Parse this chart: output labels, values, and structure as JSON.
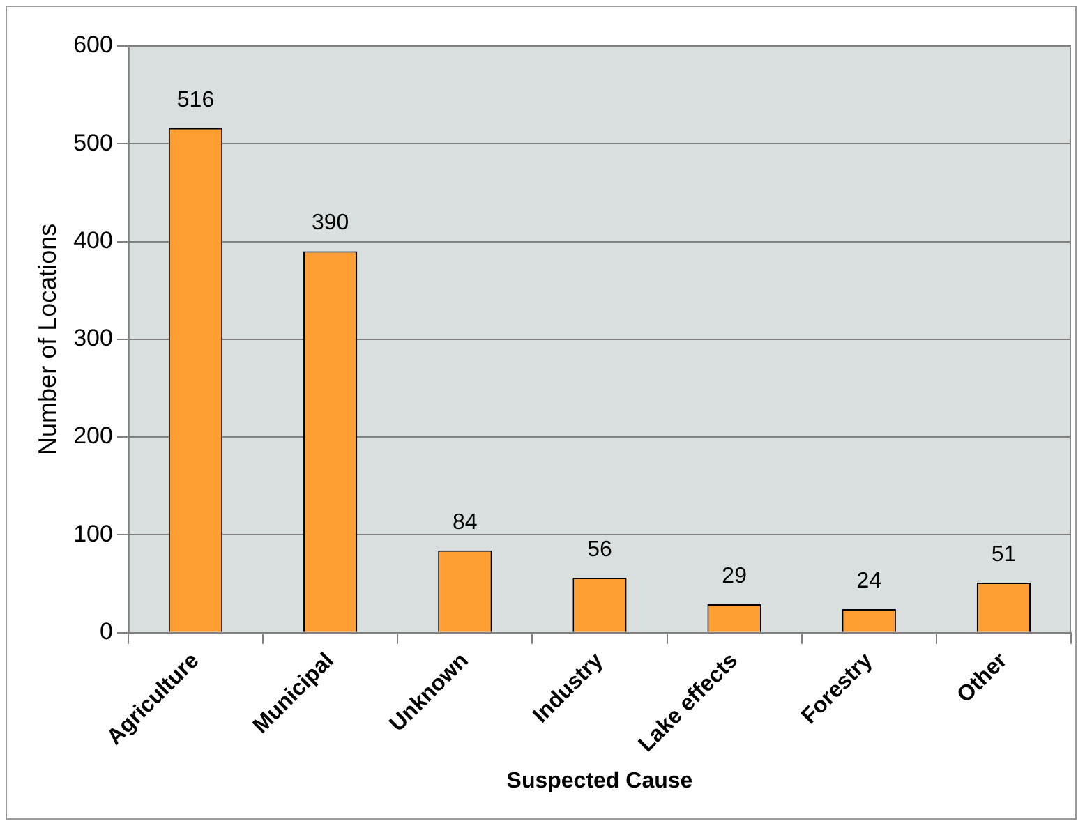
{
  "chart_data": {
    "type": "bar",
    "xlabel": "Suspected Cause",
    "ylabel": "Number of Locations",
    "categories": [
      "Agriculture",
      "Municipal",
      "Unknown",
      "Industry",
      "Lake effects",
      "Forestry",
      "Other"
    ],
    "values": [
      516,
      390,
      84,
      56,
      29,
      24,
      51
    ],
    "color": "#ff9f33",
    "ylim": [
      0,
      600
    ],
    "yticks": [
      0,
      100,
      200,
      300,
      400,
      500,
      600
    ],
    "grid": "y",
    "data_labels": true,
    "legend": false
  }
}
